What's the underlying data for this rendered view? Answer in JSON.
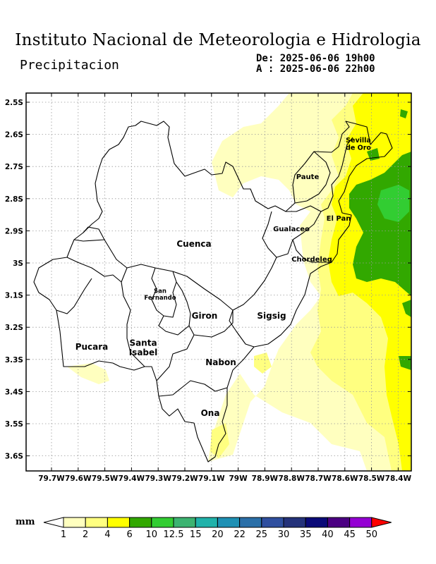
{
  "header": {
    "title": "Instituto Nacional de Meteorologia e Hidrologia",
    "variable": "Precipitacion",
    "from_label": "De: 2025-06-06 19h00",
    "to_label": "A : 2025-06-06 22h00"
  },
  "map": {
    "lat_ticks": [
      "2.5S",
      "2.6S",
      "2.7S",
      "2.8S",
      "2.9S",
      "3S",
      "3.1S",
      "3.2S",
      "3.3S",
      "3.4S",
      "3.5S",
      "3.6S"
    ],
    "lon_ticks": [
      "79.7W",
      "79.6W",
      "79.5W",
      "79.4W",
      "79.3W",
      "79.2W",
      "79.1W",
      "79W",
      "78.9W",
      "78.8W",
      "78.7W",
      "78.6W",
      "78.5W",
      "78.4W"
    ],
    "cantons": [
      "Cuenca",
      "Gualaceo",
      "Paute",
      "El Pan",
      "Sevilla de Oro",
      "Chordeleg",
      "Sigsig",
      "Giron",
      "San Fernando",
      "Santa Isabel",
      "Pucara",
      "Nabon",
      "Ona"
    ],
    "canton_lines": {
      "Sevilla de Oro": [
        "Sevilla",
        "de Oro"
      ],
      "San Fernando": [
        "San",
        "Fernando"
      ],
      "Santa Isabel": [
        "Santa",
        "Isabel"
      ]
    }
  },
  "legend": {
    "unit": "mm",
    "levels": [
      "1",
      "2",
      "4",
      "6",
      "10",
      "12.5",
      "15",
      "20",
      "22",
      "25",
      "30",
      "35",
      "40",
      "45",
      "50"
    ],
    "colors": [
      "#ffffff",
      "#ffffbf",
      "#ffff80",
      "#ffff00",
      "#32a800",
      "#32cd32",
      "#3cb371",
      "#20b2aa",
      "#1e90b4",
      "#2a6fa8",
      "#2f4f9f",
      "#24327a",
      "#0a0a78",
      "#4b0082",
      "#9400d3",
      "#ff0000"
    ]
  }
}
